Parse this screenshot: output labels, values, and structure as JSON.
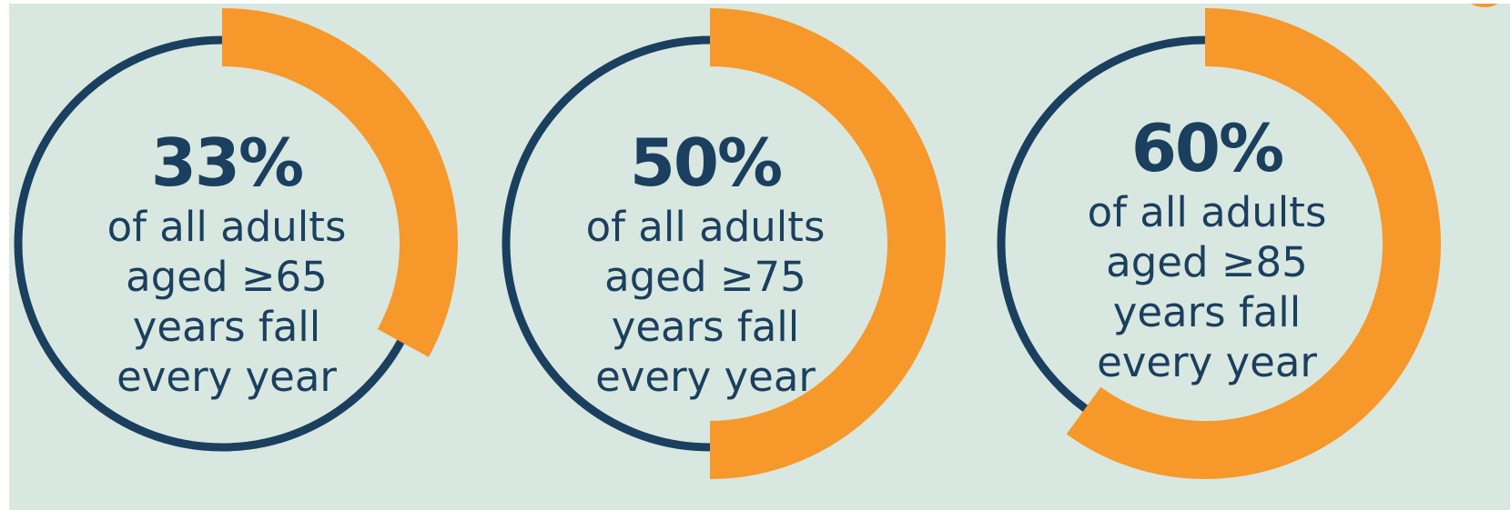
{
  "colors": {
    "background": "#d8e7e0",
    "ring": "#1b3f5e",
    "highlight": "#f7982b",
    "text": "#1b3f5e"
  },
  "chart_data": [
    {
      "type": "pie",
      "value": 33,
      "label": "33%",
      "description": [
        "of all adults",
        "aged ≥65",
        "years fall",
        "every year"
      ]
    },
    {
      "type": "pie",
      "value": 50,
      "label": "50%",
      "description": [
        "of all adults",
        "aged ≥75",
        "years fall",
        "every year"
      ]
    },
    {
      "type": "pie",
      "value": 60,
      "label": "60%",
      "description": [
        "of all adults",
        "aged ≥85",
        "years fall",
        "every year"
      ]
    }
  ]
}
